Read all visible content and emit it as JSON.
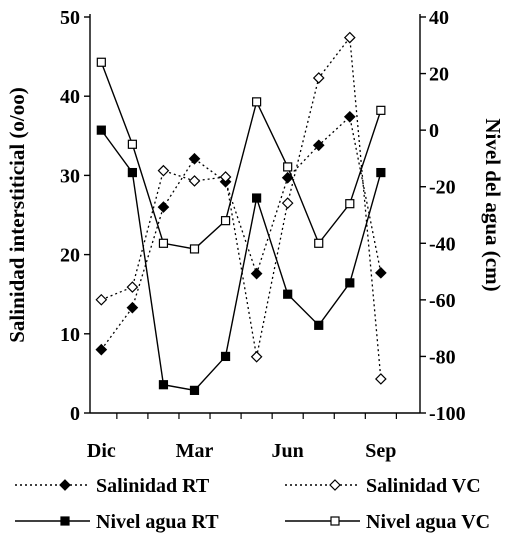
{
  "chart_data": {
    "type": "line",
    "x_tick_labels": [
      "Dic",
      "Mar",
      "Jun",
      "Sep"
    ],
    "x_tick_indices": [
      0,
      3,
      6,
      9
    ],
    "left_axis": {
      "label": "Salinidad interstiticial (o/oo)",
      "ylim": [
        0,
        50
      ],
      "ticks": [
        0,
        10,
        20,
        30,
        40,
        50
      ],
      "tick_labels": [
        "0",
        "10",
        "20",
        "30",
        "40",
        "50"
      ]
    },
    "right_axis": {
      "label": "Nivel del agua (cm)",
      "ylim": [
        -100,
        40
      ],
      "ticks": [
        -100,
        -80,
        -60,
        -40,
        -20,
        0,
        20,
        40
      ],
      "tick_labels": [
        "-100",
        "-80",
        "-60",
        "-40",
        "-20",
        "0",
        "20",
        "40"
      ]
    },
    "series": [
      {
        "name": "Salinidad RT",
        "axis": "left",
        "line": "dotted",
        "marker": "diamond-filled",
        "x": [
          0,
          1,
          2,
          3,
          4,
          5,
          6,
          7,
          8,
          9
        ],
        "values": [
          8,
          13.3,
          26,
          32.1,
          29.2,
          17.6,
          29.7,
          33.8,
          37.4,
          17.7
        ]
      },
      {
        "name": "Salinidad VC",
        "axis": "left",
        "line": "dotted",
        "marker": "diamond-open",
        "x": [
          0,
          1,
          2,
          3,
          4,
          5,
          6,
          7,
          8,
          9,
          10
        ],
        "values": [
          14.3,
          15.9,
          30.6,
          29.3,
          29.8,
          7.1,
          26.5,
          42.3,
          47.4,
          4.3,
          null
        ]
      },
      {
        "name": "Nivel agua RT",
        "axis": "right",
        "line": "solid",
        "marker": "square-filled",
        "x": [
          0,
          1,
          2,
          3,
          4,
          5,
          6,
          7,
          8,
          9
        ],
        "values": [
          0,
          -15,
          -90,
          -92,
          -80,
          -24,
          -58,
          -69,
          -54,
          -15
        ]
      },
      {
        "name": "Nivel agua VC",
        "axis": "right",
        "line": "solid",
        "marker": "square-open",
        "x": [
          0,
          1,
          2,
          3,
          4,
          5,
          6,
          7,
          8,
          9
        ],
        "values": [
          24,
          -5,
          -40,
          -42,
          -32,
          10,
          -13,
          -40,
          -26,
          7
        ]
      }
    ],
    "legend": {
      "placement": "bottom",
      "entries": [
        "Salinidad RT",
        "Salinidad VC",
        "Nivel agua RT",
        "Nivel agua VC"
      ]
    },
    "grid": false
  }
}
